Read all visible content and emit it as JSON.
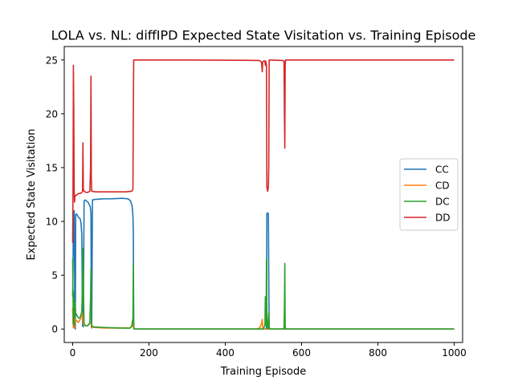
{
  "chart_data": {
    "type": "line",
    "title": "LOLA vs. NL: diffIPD Expected State Visitation vs. Training Episode",
    "xlabel": "Training Episode",
    "ylabel": "Expected State Visitation",
    "xlim": [
      -22,
      1022
    ],
    "ylim": [
      -1.25,
      26.25
    ],
    "xticks": [
      "0",
      "200",
      "400",
      "600",
      "800",
      "1000"
    ],
    "yticks": [
      "0",
      "5",
      "10",
      "15",
      "20",
      "25"
    ],
    "grid": false,
    "legend_position": "center-right",
    "series": [
      {
        "name": "CC",
        "color": "#1f77b4",
        "points": [
          [
            0,
            3
          ],
          [
            1,
            5.5
          ],
          [
            2,
            10.8
          ],
          [
            3,
            7
          ],
          [
            4,
            11
          ],
          [
            5,
            6
          ],
          [
            6,
            0.5
          ],
          [
            7,
            0
          ],
          [
            8,
            10.6
          ],
          [
            10,
            10.7
          ],
          [
            12,
            10.6
          ],
          [
            15,
            10.4
          ],
          [
            18,
            10.3
          ],
          [
            20,
            10.2
          ],
          [
            22,
            9.8
          ],
          [
            24,
            8.8
          ],
          [
            26,
            0.3
          ],
          [
            28,
            0.2
          ],
          [
            30,
            11.9
          ],
          [
            33,
            12
          ],
          [
            36,
            11.9
          ],
          [
            40,
            11.8
          ],
          [
            43,
            11.6
          ],
          [
            46,
            11.4
          ],
          [
            48,
            10.8
          ],
          [
            49,
            0.2
          ],
          [
            50,
            0.1
          ],
          [
            52,
            12
          ],
          [
            60,
            12.05
          ],
          [
            80,
            12.1
          ],
          [
            100,
            12.1
          ],
          [
            130,
            12.15
          ],
          [
            145,
            12.1
          ],
          [
            152,
            11.9
          ],
          [
            156,
            11.4
          ],
          [
            158,
            10.5
          ],
          [
            159,
            9
          ],
          [
            160,
            0.2
          ],
          [
            161,
            0
          ],
          [
            200,
            0
          ],
          [
            300,
            0
          ],
          [
            400,
            0
          ],
          [
            480,
            0
          ],
          [
            500,
            0
          ],
          [
            505,
            0
          ],
          [
            508,
            0.1
          ],
          [
            509,
            10.7
          ],
          [
            511,
            10.8
          ],
          [
            513,
            10.7
          ],
          [
            514,
            5
          ],
          [
            515,
            0.2
          ],
          [
            516,
            0
          ],
          [
            550,
            0
          ],
          [
            555,
            0
          ],
          [
            556,
            0.1
          ],
          [
            557,
            0
          ],
          [
            600,
            0
          ],
          [
            800,
            0
          ],
          [
            1000,
            0
          ]
        ]
      },
      {
        "name": "CD",
        "color": "#ff7f0e",
        "points": [
          [
            0,
            2
          ],
          [
            1,
            0.5
          ],
          [
            2,
            0.1
          ],
          [
            3,
            1.2
          ],
          [
            4,
            0.2
          ],
          [
            5,
            0.1
          ],
          [
            6,
            1
          ],
          [
            7,
            0.9
          ],
          [
            10,
            0.8
          ],
          [
            15,
            0.6
          ],
          [
            20,
            0.9
          ],
          [
            25,
            1.5
          ],
          [
            28,
            0.4
          ],
          [
            30,
            0.4
          ],
          [
            35,
            0.3
          ],
          [
            40,
            0.3
          ],
          [
            45,
            0.6
          ],
          [
            48,
            0.5
          ],
          [
            50,
            0.2
          ],
          [
            55,
            0.15
          ],
          [
            80,
            0.1
          ],
          [
            120,
            0.1
          ],
          [
            150,
            0.1
          ],
          [
            155,
            0.2
          ],
          [
            159,
            0.5
          ],
          [
            160,
            0.1
          ],
          [
            161,
            0
          ],
          [
            300,
            0
          ],
          [
            480,
            0
          ],
          [
            490,
            0.1
          ],
          [
            495,
            0.5
          ],
          [
            497,
            0.9
          ],
          [
            498,
            0.2
          ],
          [
            499,
            0
          ],
          [
            520,
            0
          ],
          [
            555,
            0
          ],
          [
            556,
            0.4
          ],
          [
            557,
            0
          ],
          [
            700,
            0
          ],
          [
            1000,
            0
          ]
        ]
      },
      {
        "name": "DC",
        "color": "#2ca02c",
        "points": [
          [
            0,
            6.5
          ],
          [
            1,
            3
          ],
          [
            2,
            0.5
          ],
          [
            3,
            3.5
          ],
          [
            4,
            0.3
          ],
          [
            5,
            1.5
          ],
          [
            6,
            2.5
          ],
          [
            8,
            1.5
          ],
          [
            12,
            1.2
          ],
          [
            16,
            1
          ],
          [
            20,
            1.1
          ],
          [
            24,
            1.6
          ],
          [
            26,
            4.5
          ],
          [
            27,
            7.5
          ],
          [
            28,
            4
          ],
          [
            30,
            0.5
          ],
          [
            34,
            0.3
          ],
          [
            38,
            0.3
          ],
          [
            42,
            0.4
          ],
          [
            45,
            0.6
          ],
          [
            47,
            3
          ],
          [
            48,
            5.6
          ],
          [
            49,
            1
          ],
          [
            50,
            0.3
          ],
          [
            55,
            0.2
          ],
          [
            80,
            0.15
          ],
          [
            120,
            0.1
          ],
          [
            150,
            0.08
          ],
          [
            155,
            0.3
          ],
          [
            158,
            1
          ],
          [
            159,
            6
          ],
          [
            160,
            0.5
          ],
          [
            161,
            0
          ],
          [
            300,
            0
          ],
          [
            480,
            0
          ],
          [
            500,
            0
          ],
          [
            504,
            0.4
          ],
          [
            505,
            3
          ],
          [
            506,
            0.5
          ],
          [
            507,
            0.3
          ],
          [
            508,
            6.5
          ],
          [
            509,
            1.5
          ],
          [
            510,
            0.1
          ],
          [
            512,
            0
          ],
          [
            514,
            1.5
          ],
          [
            515,
            0.3
          ],
          [
            516,
            0
          ],
          [
            554,
            0
          ],
          [
            555,
            2
          ],
          [
            556,
            6.1
          ],
          [
            557,
            0.3
          ],
          [
            558,
            0
          ],
          [
            700,
            0
          ],
          [
            1000,
            0
          ]
        ]
      },
      {
        "name": "DD",
        "color": "#d62728",
        "points": [
          [
            0,
            8
          ],
          [
            1,
            13
          ],
          [
            2,
            24.5
          ],
          [
            3,
            20
          ],
          [
            4,
            13
          ],
          [
            5,
            11.8
          ],
          [
            6,
            12.3
          ],
          [
            8,
            12.4
          ],
          [
            12,
            12.5
          ],
          [
            16,
            12.6
          ],
          [
            20,
            12.6
          ],
          [
            24,
            12.7
          ],
          [
            26,
            12.8
          ],
          [
            27,
            17.3
          ],
          [
            28,
            13
          ],
          [
            30,
            12.8
          ],
          [
            35,
            12.7
          ],
          [
            40,
            12.7
          ],
          [
            45,
            12.8
          ],
          [
            47,
            15
          ],
          [
            48,
            23.5
          ],
          [
            49,
            14
          ],
          [
            50,
            12.8
          ],
          [
            60,
            12.75
          ],
          [
            80,
            12.75
          ],
          [
            100,
            12.75
          ],
          [
            120,
            12.75
          ],
          [
            140,
            12.75
          ],
          [
            155,
            12.8
          ],
          [
            158,
            13
          ],
          [
            159,
            20
          ],
          [
            160,
            25
          ],
          [
            200,
            25
          ],
          [
            300,
            25
          ],
          [
            400,
            24.98
          ],
          [
            450,
            24.97
          ],
          [
            490,
            24.95
          ],
          [
            495,
            24.8
          ],
          [
            497,
            23.9
          ],
          [
            498,
            24.8
          ],
          [
            500,
            24.9
          ],
          [
            504,
            24.9
          ],
          [
            505,
            24.5
          ],
          [
            506,
            24.9
          ],
          [
            508,
            24.5
          ],
          [
            509,
            13.2
          ],
          [
            511,
            12.8
          ],
          [
            513,
            13.2
          ],
          [
            514,
            15
          ],
          [
            515,
            25
          ],
          [
            520,
            25
          ],
          [
            550,
            24.95
          ],
          [
            554,
            24.9
          ],
          [
            555,
            20
          ],
          [
            556,
            16.8
          ],
          [
            557,
            24.5
          ],
          [
            558,
            25
          ],
          [
            600,
            25
          ],
          [
            800,
            25
          ],
          [
            1000,
            25
          ]
        ]
      }
    ]
  }
}
